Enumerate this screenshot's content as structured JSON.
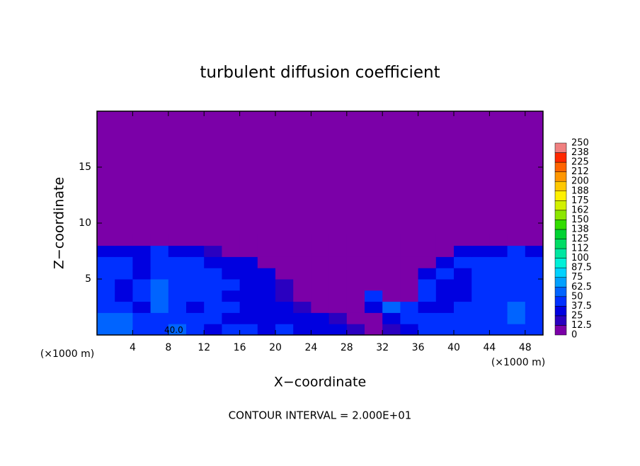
{
  "chart_data": {
    "type": "field",
    "title": "turbulent diffusion coefficient",
    "x_label": "X−coordinate",
    "y_label": "Z−coordinate",
    "x_unit_left": "(×1000 m)",
    "x_unit_right": "(×1000 m)",
    "footer": "CONTOUR INTERVAL = 2.000E+01",
    "annotation": {
      "text": "40.0",
      "x": 8.6,
      "z": 0.4
    },
    "xlim": [
      0,
      50
    ],
    "ylim": [
      0,
      20
    ],
    "xticks": [
      4,
      8,
      12,
      16,
      20,
      24,
      28,
      32,
      36,
      40,
      44,
      48
    ],
    "yticks": [
      5,
      10,
      15
    ],
    "x": [
      1,
      3,
      5,
      7,
      9,
      11,
      13,
      15,
      17,
      19,
      21,
      23,
      25,
      27,
      29,
      31,
      33,
      35,
      37,
      39,
      41,
      43,
      45,
      47,
      49
    ],
    "z": [
      0.5,
      1.5,
      2.5,
      3.5,
      4.5,
      5.5,
      6.5,
      7.5,
      8.5
    ],
    "values": [
      [
        55,
        60,
        45,
        40,
        50,
        45,
        35,
        40,
        40,
        35,
        40,
        35,
        30,
        30,
        20,
        10,
        15,
        35,
        40,
        45,
        40,
        40,
        45,
        45,
        40
      ],
      [
        50,
        55,
        40,
        45,
        40,
        40,
        40,
        35,
        35,
        35,
        35,
        30,
        25,
        15,
        10,
        5,
        30,
        40,
        40,
        40,
        40,
        45,
        40,
        55,
        45
      ],
      [
        45,
        40,
        35,
        50,
        40,
        35,
        40,
        40,
        35,
        30,
        25,
        15,
        10,
        5,
        5,
        30,
        55,
        45,
        35,
        30,
        40,
        40,
        40,
        50,
        40
      ],
      [
        40,
        35,
        40,
        55,
        45,
        40,
        40,
        35,
        30,
        25,
        15,
        10,
        5,
        5,
        5,
        40,
        10,
        10,
        40,
        35,
        35,
        40,
        45,
        40,
        40
      ],
      [
        40,
        35,
        40,
        50,
        45,
        40,
        40,
        40,
        35,
        30,
        20,
        10,
        5,
        0,
        0,
        5,
        5,
        10,
        40,
        35,
        35,
        40,
        40,
        45,
        40
      ],
      [
        40,
        40,
        35,
        45,
        40,
        40,
        40,
        35,
        35,
        25,
        10,
        5,
        0,
        0,
        0,
        0,
        0,
        5,
        35,
        40,
        35,
        40,
        40,
        40,
        40
      ],
      [
        40,
        40,
        35,
        45,
        40,
        40,
        35,
        35,
        30,
        10,
        0,
        0,
        0,
        0,
        0,
        0,
        0,
        0,
        10,
        35,
        40,
        40,
        40,
        40,
        40
      ],
      [
        35,
        30,
        25,
        40,
        35,
        30,
        20,
        10,
        5,
        0,
        0,
        0,
        0,
        0,
        0,
        0,
        0,
        0,
        0,
        10,
        25,
        35,
        35,
        40,
        35
      ],
      [
        0,
        0,
        0,
        10,
        5,
        0,
        0,
        0,
        0,
        0,
        0,
        0,
        0,
        0,
        0,
        0,
        0,
        0,
        0,
        0,
        0,
        0,
        5,
        10,
        5
      ]
    ],
    "cbar_ticks": [
      0,
      12.5,
      25,
      37.5,
      50,
      62.5,
      75,
      87.5,
      100,
      112,
      125,
      138,
      150,
      162,
      175,
      188,
      200,
      212,
      225,
      238,
      250
    ],
    "colors": [
      "#7b00a8",
      "#2a00c0",
      "#0000e0",
      "#0030ff",
      "#0064ff",
      "#00a0ff",
      "#00d2ff",
      "#00f0d8",
      "#00e6a0",
      "#00dc64",
      "#00d232",
      "#32dc00",
      "#8ce600",
      "#d2f000",
      "#fff000",
      "#ffc800",
      "#ff9600",
      "#ff6400",
      "#ff2800",
      "#f08080"
    ]
  }
}
